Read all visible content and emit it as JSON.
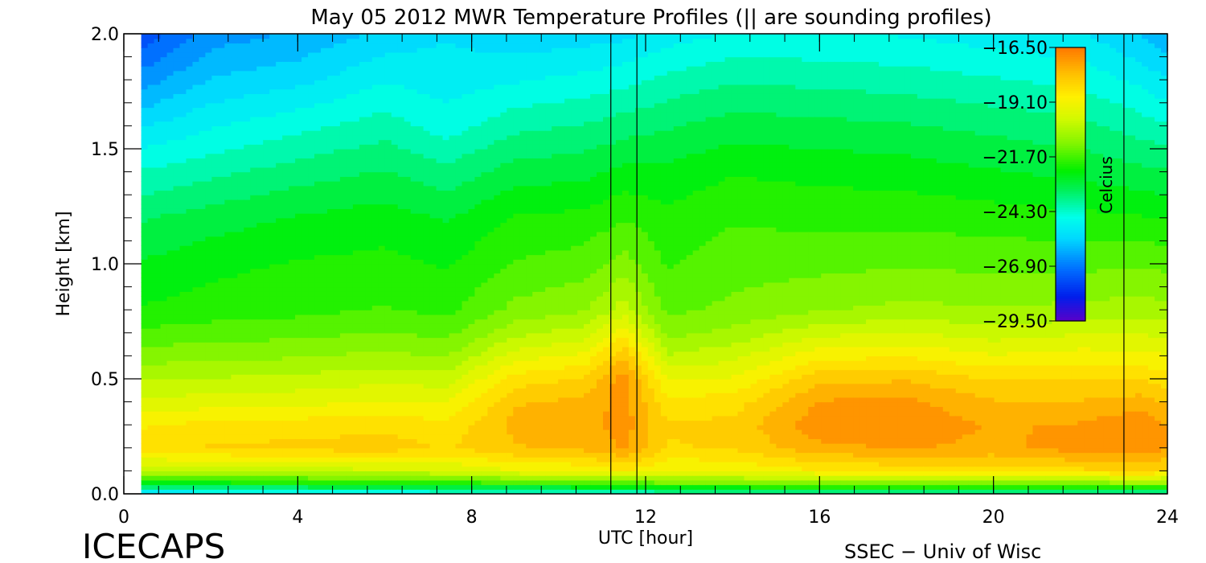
{
  "chart_data": {
    "type": "heatmap",
    "title": "May 05 2012 MWR Temperature Profiles (|| are sounding profiles)",
    "xlabel": "UTC [hour]",
    "ylabel": "Height [km]",
    "xlim": [
      0,
      24
    ],
    "ylim": [
      0.0,
      2.0
    ],
    "x_ticks": [
      0,
      4,
      8,
      12,
      16,
      20,
      24
    ],
    "y_ticks": [
      0.0,
      0.5,
      1.0,
      1.5,
      2.0
    ],
    "x_tick_labels": [
      "0",
      "4",
      "8",
      "12",
      "16",
      "20",
      "24"
    ],
    "y_tick_labels": [
      "0.0",
      "0.5",
      "1.0",
      "1.5",
      "2.0"
    ],
    "colorbar": {
      "label": "Celcius",
      "min": -29.5,
      "max": -16.5,
      "tick_labels": [
        "−16.50",
        "−19.10",
        "−21.70",
        "−24.30",
        "−26.90",
        "−29.50"
      ],
      "placement": "top-right inside plot"
    },
    "sounding_times": [
      11.2,
      11.8,
      23.0
    ],
    "heights": [
      0.0,
      0.05,
      0.1,
      0.2,
      0.3,
      0.4,
      0.5,
      0.6,
      0.7,
      0.8,
      1.0,
      1.2,
      1.4,
      1.6,
      1.8,
      2.0
    ],
    "time_columns": [
      {
        "t": 0.4,
        "values": [
          -25.5,
          -22.5,
          -20.2,
          -18.4,
          -18.8,
          -19.6,
          -20.3,
          -21.0,
          -21.6,
          -22.2,
          -22.7,
          -23.3,
          -24.2,
          -25.3,
          -26.5,
          -27.6
        ]
      },
      {
        "t": 2.0,
        "values": [
          -25.3,
          -22.3,
          -20.1,
          -18.2,
          -18.6,
          -19.5,
          -20.2,
          -20.9,
          -21.5,
          -22.0,
          -22.4,
          -23.0,
          -23.9,
          -24.8,
          -25.7,
          -26.5
        ]
      },
      {
        "t": 4.0,
        "values": [
          -25.0,
          -22.1,
          -20.0,
          -18.1,
          -18.5,
          -19.4,
          -20.1,
          -20.8,
          -21.4,
          -21.9,
          -22.2,
          -22.7,
          -23.5,
          -24.4,
          -25.4,
          -26.2
        ]
      },
      {
        "t": 6.0,
        "values": [
          -24.9,
          -22.0,
          -19.9,
          -18.0,
          -18.4,
          -19.2,
          -19.9,
          -20.6,
          -21.2,
          -21.7,
          -22.1,
          -22.5,
          -23.2,
          -24.0,
          -24.8,
          -25.6
        ]
      },
      {
        "t": 7.4,
        "values": [
          -24.8,
          -21.9,
          -19.8,
          -18.3,
          -18.6,
          -19.3,
          -20.0,
          -20.8,
          -21.4,
          -21.9,
          -22.3,
          -22.8,
          -23.6,
          -24.5,
          -25.0,
          -25.3
        ]
      },
      {
        "t": 9.0,
        "values": [
          -24.6,
          -21.6,
          -19.3,
          -17.8,
          -17.6,
          -17.8,
          -18.5,
          -19.5,
          -20.4,
          -21.1,
          -21.7,
          -22.2,
          -23.0,
          -23.9,
          -24.8,
          -25.6
        ]
      },
      {
        "t": 10.6,
        "values": [
          -24.6,
          -21.5,
          -19.2,
          -17.6,
          -17.5,
          -17.6,
          -18.2,
          -19.1,
          -20.0,
          -20.8,
          -21.5,
          -22.1,
          -22.9,
          -23.7,
          -24.6,
          -25.5
        ]
      },
      {
        "t": 11.5,
        "values": [
          -24.5,
          -21.4,
          -18.7,
          -17.2,
          -17.0,
          -17.0,
          -16.9,
          -17.8,
          -18.9,
          -20.0,
          -21.0,
          -21.8,
          -22.6,
          -23.5,
          -24.4,
          -25.4
        ]
      },
      {
        "t": 12.5,
        "values": [
          -24.3,
          -21.2,
          -19.3,
          -18.3,
          -18.2,
          -18.6,
          -19.3,
          -20.2,
          -20.9,
          -21.4,
          -21.8,
          -22.1,
          -22.6,
          -23.3,
          -24.1,
          -25.0
        ]
      },
      {
        "t": 14.0,
        "values": [
          -24.2,
          -21.0,
          -19.2,
          -18.2,
          -18.1,
          -18.5,
          -19.2,
          -19.9,
          -20.6,
          -21.1,
          -21.5,
          -21.8,
          -22.3,
          -23.0,
          -23.8,
          -24.7
        ]
      },
      {
        "t": 16.0,
        "values": [
          -24.0,
          -20.9,
          -18.8,
          -17.4,
          -16.9,
          -17.2,
          -17.9,
          -18.9,
          -19.9,
          -20.8,
          -21.4,
          -21.9,
          -22.4,
          -23.1,
          -23.9,
          -24.7
        ]
      },
      {
        "t": 18.0,
        "values": [
          -24.0,
          -20.8,
          -18.6,
          -17.2,
          -16.9,
          -17.1,
          -17.8,
          -18.8,
          -19.7,
          -20.6,
          -21.3,
          -21.9,
          -22.5,
          -23.2,
          -24.0,
          -24.8
        ]
      },
      {
        "t": 20.0,
        "values": [
          -24.1,
          -20.8,
          -18.6,
          -17.4,
          -17.3,
          -17.7,
          -18.3,
          -19.2,
          -20.0,
          -20.7,
          -21.4,
          -22.0,
          -22.7,
          -23.4,
          -24.2,
          -25.0
        ]
      },
      {
        "t": 22.0,
        "values": [
          -24.1,
          -20.8,
          -18.4,
          -17.0,
          -17.2,
          -17.7,
          -18.3,
          -19.0,
          -19.8,
          -20.6,
          -21.4,
          -22.1,
          -22.9,
          -23.6,
          -24.4,
          -25.2
        ]
      },
      {
        "t": 23.4,
        "values": [
          -24.0,
          -20.7,
          -18.1,
          -16.9,
          -16.8,
          -17.5,
          -18.3,
          -19.1,
          -19.8,
          -20.5,
          -21.3,
          -22.2,
          -23.1,
          -24.0,
          -24.9,
          -25.8
        ]
      },
      {
        "t": 24.0,
        "values": [
          -24.0,
          -20.7,
          -18.4,
          -17.2,
          -17.3,
          -17.8,
          -18.5,
          -19.2,
          -19.9,
          -20.6,
          -21.4,
          -22.3,
          -23.2,
          -24.2,
          -25.2,
          -26.2
        ]
      }
    ]
  },
  "footer": {
    "brand": "ICECAPS",
    "credit": "SSEC − Univ of Wisc"
  }
}
